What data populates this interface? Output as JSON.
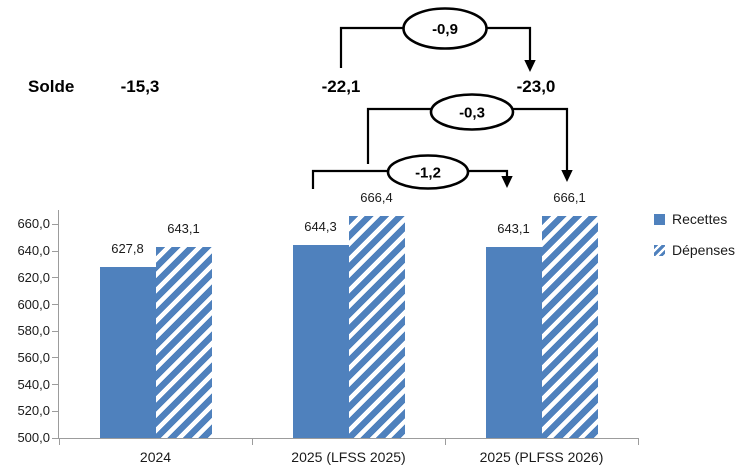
{
  "chart_data": {
    "type": "bar",
    "title": "",
    "categories": [
      "2024",
      "2025 (LFSS 2025)",
      "2025 (PLFSS 2026)"
    ],
    "series": [
      {
        "name": "Recettes",
        "pattern": "solid",
        "values": [
          627.8,
          644.3,
          643.1
        ],
        "labels": [
          "627,8",
          "644,3",
          "643,1"
        ]
      },
      {
        "name": "Dépenses",
        "pattern": "hatched",
        "values": [
          643.1,
          666.4,
          666.1
        ],
        "labels": [
          "643,1",
          "666,4",
          "666,1"
        ]
      }
    ],
    "xlabel": "",
    "ylabel": "",
    "ylim": [
      500,
      670
    ],
    "y_ticks": [
      {
        "v": 500,
        "label": "500,0"
      },
      {
        "v": 520,
        "label": "520,0"
      },
      {
        "v": 540,
        "label": "540,0"
      },
      {
        "v": 560,
        "label": "560,0"
      },
      {
        "v": 580,
        "label": "580,0"
      },
      {
        "v": 600,
        "label": "600,0"
      },
      {
        "v": 620,
        "label": "620,0"
      },
      {
        "v": 640,
        "label": "640,0"
      },
      {
        "v": 660,
        "label": "660,0"
      }
    ],
    "grid": false,
    "legend_position": "right",
    "solde": {
      "label": "Solde",
      "values": [
        "-15,3",
        "-22,1",
        "-23,0"
      ]
    },
    "deltas": [
      {
        "value": "-0,9",
        "from": "-22,1",
        "to": "-23,0"
      },
      {
        "value": "-0,3",
        "from": "666,4",
        "to": "666,1"
      },
      {
        "value": "-1,2",
        "from": "644,3",
        "to": "643,1"
      }
    ],
    "colors": {
      "bar_blue": "#4F81BD",
      "axis_gray": "#9C9C9C",
      "annotation_black": "#000000"
    }
  }
}
